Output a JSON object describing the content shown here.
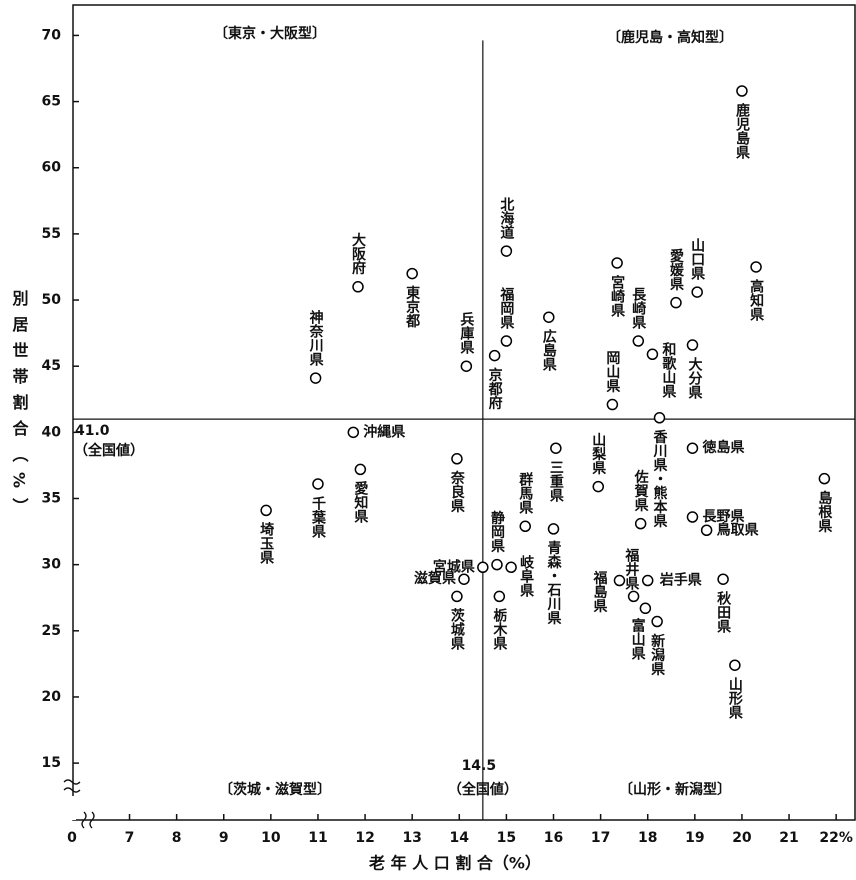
{
  "chart_data": {
    "type": "scatter",
    "title_quadrants": [
      "〔東京・大阪型〕",
      "〔鹿児島・高知型〕",
      "〔茨城・滋賀型〕",
      "〔山形・新潟型〕"
    ],
    "x_label": "老 年 人 口 割 合（%）",
    "y_label": "別居世帯割合（%）",
    "x_break_label": "0",
    "xlim": [
      5.8,
      22.4
    ],
    "xticks": [
      7,
      8,
      9,
      10,
      11,
      12,
      13,
      14,
      15,
      16,
      17,
      18,
      19,
      20,
      21,
      {
        "value": 22,
        "label": "22%"
      }
    ],
    "ylim": [
      10.7,
      72.3
    ],
    "yticks": [
      15,
      20,
      25,
      30,
      35,
      40,
      45,
      50,
      55,
      60,
      65,
      70
    ],
    "reference_lines": {
      "x": 14.5,
      "x_label": "14.5",
      "x_note": "（全国値）",
      "y": 41,
      "y_label": "41.0",
      "y_note": "（全国値）"
    },
    "point_labels": [
      "鹿児島県",
      "高知県",
      "山口県",
      "愛媛県",
      "宮崎県",
      "長崎県",
      "和歌山県",
      "大分県",
      "岡山県",
      "広島県",
      "北海道",
      "福岡県",
      "京都府",
      "兵庫県",
      "東京都",
      "大阪府",
      "神奈川県",
      "香川県・熊本県",
      "沖縄県",
      "徳島県",
      "三重県",
      "山梨県",
      "島根県",
      "奈良県",
      "愛知県",
      "千葉県",
      "埼玉県",
      "佐賀県",
      "福島県",
      "富山県",
      "岩手県",
      "新潟県",
      "福井県",
      "長野県",
      "鳥取県",
      "秋田県",
      "山形県",
      "静岡県",
      "宮城県",
      "滋賀県",
      "茨城県",
      "栃木県",
      "群馬県",
      "岐阜県",
      "青森・石川県"
    ],
    "x": [
      20.0,
      20.3,
      19.05,
      18.6,
      17.35,
      17.8,
      18.1,
      18.95,
      17.25,
      15.9,
      15.0,
      15.0,
      14.75,
      14.15,
      13.0,
      11.85,
      10.95,
      18.25,
      11.75,
      18.95,
      16.05,
      16.95,
      21.75,
      13.95,
      11.9,
      11.0,
      9.9,
      17.85,
      17.4,
      17.7,
      18.0,
      18.2,
      17.95,
      18.95,
      19.25,
      19.6,
      19.85,
      14.8,
      14.5,
      14.1,
      13.95,
      14.85,
      15.4,
      15.1,
      16.0
    ],
    "y": [
      65.8,
      52.5,
      50.6,
      49.8,
      52.8,
      46.9,
      45.9,
      46.6,
      42.1,
      48.7,
      53.7,
      46.9,
      45.8,
      45.0,
      52.0,
      51.0,
      44.1,
      41.1,
      40.0,
      38.8,
      38.8,
      35.9,
      36.5,
      38.0,
      37.2,
      36.1,
      34.1,
      33.1,
      28.8,
      27.6,
      28.8,
      25.7,
      26.7,
      33.6,
      32.6,
      28.9,
      22.4,
      30.0,
      29.8,
      28.9,
      27.6,
      27.6,
      32.9,
      29.8,
      32.7
    ],
    "marker_color": "#000000"
  }
}
